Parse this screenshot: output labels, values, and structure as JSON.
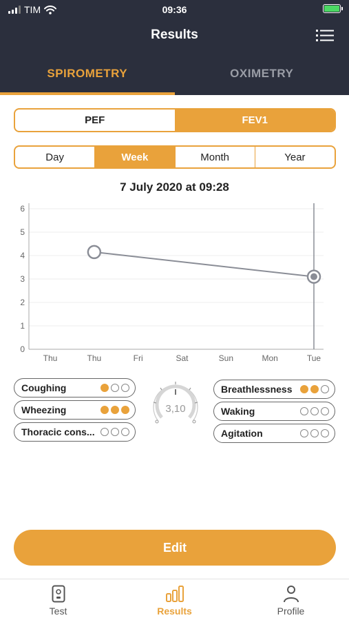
{
  "status_bar": {
    "carrier": "TIM",
    "time": "09:36"
  },
  "header": {
    "title": "Results",
    "menu_icon": "list-menu-icon"
  },
  "tabs": [
    {
      "label": "SPIROMETRY",
      "active": true
    },
    {
      "label": "OXIMETRY",
      "active": false
    }
  ],
  "measure_toggle": {
    "options": [
      "PEF",
      "FEV1"
    ],
    "selected": "FEV1"
  },
  "period_toggle": {
    "options": [
      "Day",
      "Week",
      "Month",
      "Year"
    ],
    "selected": "Week"
  },
  "reading_date": "7 July 2020 at 09:28",
  "chart_data": {
    "type": "line",
    "categories": [
      "Thu",
      "Thu",
      "Fri",
      "Sat",
      "Sun",
      "Mon",
      "Tue"
    ],
    "y_ticks": [
      "0",
      "1",
      "2",
      "3",
      "4",
      "5",
      "6"
    ],
    "ylim": [
      0,
      6
    ],
    "series": [
      {
        "points": [
          {
            "x": 1,
            "y": 4.15
          },
          {
            "x": 6,
            "y": 3.1
          }
        ]
      }
    ],
    "selected_index": 6,
    "grid": true,
    "colors": {
      "line": "#8a8d96",
      "selected": "#8a8d96"
    }
  },
  "gauge": {
    "value": "3,10",
    "icon": "gauge-dial-icon"
  },
  "symptoms_left": [
    {
      "label": "Coughing",
      "level": 1
    },
    {
      "label": "Wheezing",
      "level": 3
    },
    {
      "label": "Thoracic cons...",
      "level": 0
    }
  ],
  "symptoms_right": [
    {
      "label": "Breathlessness",
      "level": 2
    },
    {
      "label": "Waking",
      "level": 0
    },
    {
      "label": "Agitation",
      "level": 0
    }
  ],
  "edit_label": "Edit",
  "bottom_nav": [
    {
      "label": "Test",
      "icon": "test-device-icon",
      "active": false
    },
    {
      "label": "Results",
      "icon": "bar-chart-icon",
      "active": true
    },
    {
      "label": "Profile",
      "icon": "person-icon",
      "active": false
    }
  ],
  "colors": {
    "accent": "#e9a23b",
    "header_bg": "#2b2f3d"
  }
}
